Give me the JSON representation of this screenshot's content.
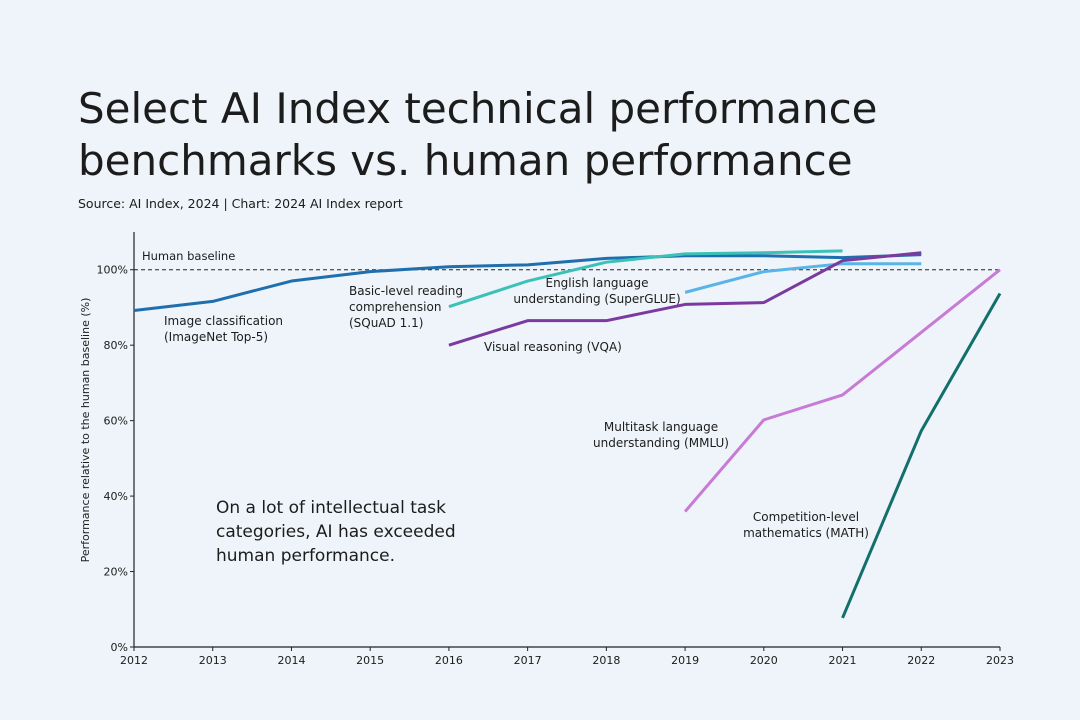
{
  "chart_data": {
    "type": "line",
    "title": [
      "Select AI Index technical performance",
      "benchmarks vs. human performance"
    ],
    "subtitle": "Source: AI Index, 2024 | Chart: 2024 AI Index report",
    "y_label": "Performance relative to the human baseline (%)",
    "annotation": [
      "On a lot of intellectual task",
      "categories, AI has exceeded",
      "human performance."
    ],
    "baseline": {
      "value": 100,
      "label": "Human baseline"
    },
    "xlim": [
      2012,
      2023
    ],
    "xticks": [
      2012,
      2013,
      2014,
      2015,
      2016,
      2017,
      2018,
      2019,
      2020,
      2021,
      2022,
      2023
    ],
    "ylim": [
      0,
      110
    ],
    "yticks": [
      {
        "value": 0,
        "label": "0%"
      },
      {
        "value": 20,
        "label": "20%"
      },
      {
        "value": 40,
        "label": "40%"
      },
      {
        "value": 60,
        "label": "60%"
      },
      {
        "value": 80,
        "label": "80%"
      },
      {
        "value": 100,
        "label": "100%"
      }
    ],
    "series": [
      {
        "name": [
          "Image classification",
          "(ImageNet Top-5)"
        ],
        "color": "#1f6fae",
        "x": [
          2012,
          2013,
          2014,
          2015,
          2016,
          2017,
          2018,
          2019,
          2020,
          2021,
          2022
        ],
        "values": [
          89.2,
          91.6,
          97,
          99.5,
          100.8,
          101.3,
          103,
          103.7,
          103.7,
          103.2,
          104
        ]
      },
      {
        "name": [
          "Basic-level reading",
          "comprehension",
          "(SQuAD 1.1)"
        ],
        "color": "#3cc1b8",
        "x": [
          2016,
          2017,
          2018,
          2019,
          2020,
          2021
        ],
        "values": [
          90.2,
          97,
          102,
          104.2,
          104.5,
          105
        ]
      },
      {
        "name": [
          "English language",
          "understanding (SuperGLUE)"
        ],
        "color": "#5ab4e8",
        "x": [
          2019,
          2020,
          2021,
          2022
        ],
        "values": [
          94,
          99.5,
          101.6,
          101.6
        ]
      },
      {
        "name": [
          "Visual reasoning (VQA)"
        ],
        "color": "#7a3aa0",
        "x": [
          2016,
          2017,
          2018,
          2019,
          2020,
          2021,
          2022
        ],
        "values": [
          80,
          86.5,
          86.5,
          90.8,
          91.3,
          102.4,
          104.5
        ]
      },
      {
        "name": [
          "Multitask language",
          "understanding (MMLU)"
        ],
        "color": "#c77ad6",
        "x": [
          2019,
          2020,
          2021,
          2023
        ],
        "values": [
          35.9,
          60.2,
          66.8,
          100
        ]
      },
      {
        "name": [
          "Competition-level",
          "mathematics (MATH)"
        ],
        "color": "#136f6b",
        "x": [
          2021,
          2022,
          2023
        ],
        "values": [
          7.7,
          57.3,
          93.7
        ]
      }
    ]
  }
}
